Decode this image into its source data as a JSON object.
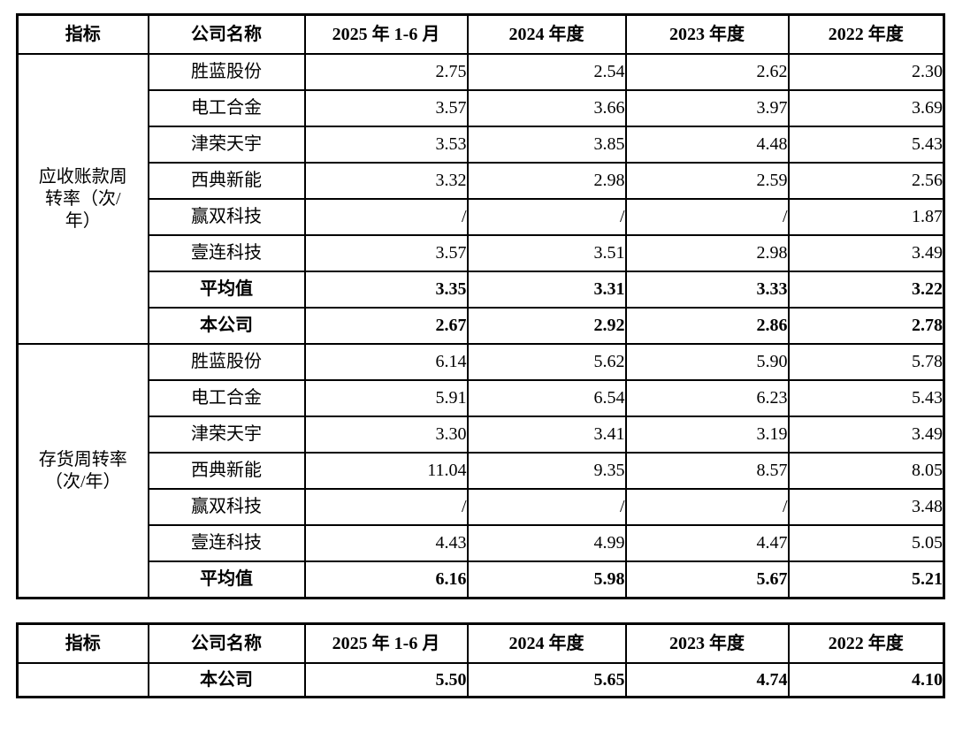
{
  "page": {
    "background_color": "#ffffff",
    "text_color": "#000000",
    "border_color": "#000000"
  },
  "table1": {
    "headers": [
      "指标",
      "公司名称",
      "2025 年 1-6 月",
      "2024 年度",
      "2023 年度",
      "2022 年度"
    ],
    "groups": [
      {
        "indicator": "应收账款周\n转率（次/\n年）",
        "rows": [
          {
            "company": "胜蓝股份",
            "values": [
              "2.75",
              "2.54",
              "2.62",
              "2.30"
            ],
            "bold": false
          },
          {
            "company": "电工合金",
            "values": [
              "3.57",
              "3.66",
              "3.97",
              "3.69"
            ],
            "bold": false
          },
          {
            "company": "津荣天宇",
            "values": [
              "3.53",
              "3.85",
              "4.48",
              "5.43"
            ],
            "bold": false
          },
          {
            "company": "西典新能",
            "values": [
              "3.32",
              "2.98",
              "2.59",
              "2.56"
            ],
            "bold": false
          },
          {
            "company": "赢双科技",
            "values": [
              "/",
              "/",
              "/",
              "1.87"
            ],
            "bold": false
          },
          {
            "company": "壹连科技",
            "values": [
              "3.57",
              "3.51",
              "2.98",
              "3.49"
            ],
            "bold": false
          },
          {
            "company": "平均值",
            "values": [
              "3.35",
              "3.31",
              "3.33",
              "3.22"
            ],
            "bold": true
          },
          {
            "company": "本公司",
            "values": [
              "2.67",
              "2.92",
              "2.86",
              "2.78"
            ],
            "bold": true
          }
        ]
      },
      {
        "indicator": "存货周转率\n（次/年）",
        "rows": [
          {
            "company": "胜蓝股份",
            "values": [
              "6.14",
              "5.62",
              "5.90",
              "5.78"
            ],
            "bold": false
          },
          {
            "company": "电工合金",
            "values": [
              "5.91",
              "6.54",
              "6.23",
              "5.43"
            ],
            "bold": false
          },
          {
            "company": "津荣天宇",
            "values": [
              "3.30",
              "3.41",
              "3.19",
              "3.49"
            ],
            "bold": false
          },
          {
            "company": "西典新能",
            "values": [
              "11.04",
              "9.35",
              "8.57",
              "8.05"
            ],
            "bold": false
          },
          {
            "company": "赢双科技",
            "values": [
              "/",
              "/",
              "/",
              "3.48"
            ],
            "bold": false
          },
          {
            "company": "壹连科技",
            "values": [
              "4.43",
              "4.99",
              "4.47",
              "5.05"
            ],
            "bold": false
          },
          {
            "company": "平均值",
            "values": [
              "6.16",
              "5.98",
              "5.67",
              "5.21"
            ],
            "bold": true
          }
        ]
      }
    ]
  },
  "table2": {
    "headers": [
      "指标",
      "公司名称",
      "2025 年 1-6 月",
      "2024 年度",
      "2023 年度",
      "2022 年度"
    ],
    "rows": [
      {
        "indicator": "",
        "company": "本公司",
        "values": [
          "5.50",
          "5.65",
          "4.74",
          "4.10"
        ],
        "bold": true
      }
    ]
  }
}
